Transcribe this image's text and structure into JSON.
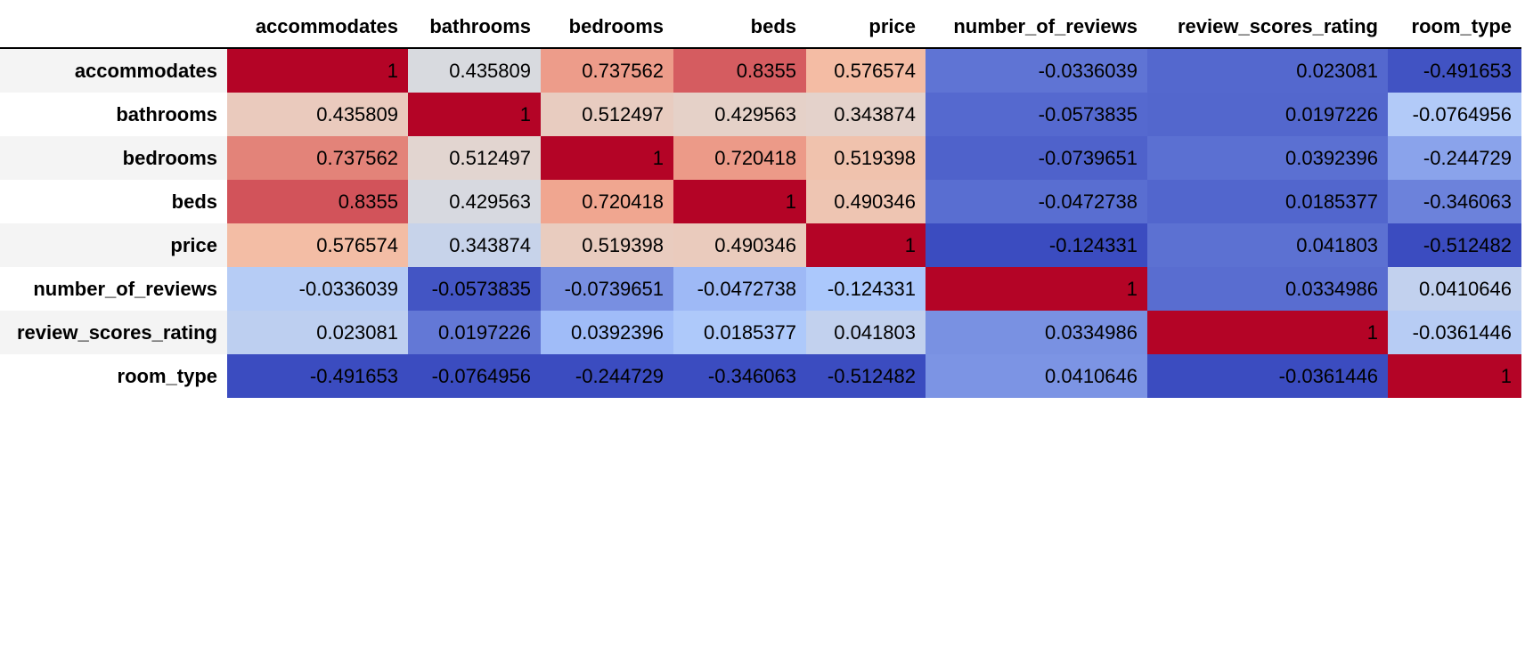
{
  "chart_data": {
    "type": "table",
    "columns": [
      "accommodates",
      "bathrooms",
      "bedrooms",
      "beds",
      "price",
      "number_of_reviews",
      "review_scores_rating",
      "room_type"
    ],
    "rows": [
      {
        "label": "accommodates",
        "cells": [
          "1",
          "0.435809",
          "0.737562",
          "0.8355",
          "0.576574",
          "-0.0336039",
          "0.023081",
          "-0.491653"
        ]
      },
      {
        "label": "bathrooms",
        "cells": [
          "0.435809",
          "1",
          "0.512497",
          "0.429563",
          "0.343874",
          "-0.0573835",
          "0.0197226",
          "-0.0764956"
        ]
      },
      {
        "label": "bedrooms",
        "cells": [
          "0.737562",
          "0.512497",
          "1",
          "0.720418",
          "0.519398",
          "-0.0739651",
          "0.0392396",
          "-0.244729"
        ]
      },
      {
        "label": "beds",
        "cells": [
          "0.8355",
          "0.429563",
          "0.720418",
          "1",
          "0.490346",
          "-0.0472738",
          "0.0185377",
          "-0.346063"
        ]
      },
      {
        "label": "price",
        "cells": [
          "0.576574",
          "0.343874",
          "0.519398",
          "0.490346",
          "1",
          "-0.124331",
          "0.041803",
          "-0.512482"
        ]
      },
      {
        "label": "number_of_reviews",
        "cells": [
          "-0.0336039",
          "-0.0573835",
          "-0.0739651",
          "-0.0472738",
          "-0.124331",
          "1",
          "0.0334986",
          "0.0410646"
        ]
      },
      {
        "label": "review_scores_rating",
        "cells": [
          "0.023081",
          "0.0197226",
          "0.0392396",
          "0.0185377",
          "0.041803",
          "0.0334986",
          "1",
          "-0.0361446"
        ]
      },
      {
        "label": "room_type",
        "cells": [
          "-0.491653",
          "-0.0764956",
          "-0.244729",
          "-0.346063",
          "-0.512482",
          "0.0410646",
          "-0.0361446",
          "1"
        ]
      }
    ],
    "colormap": "coolwarm",
    "colormap_stops": [
      "#3b4cc0",
      "#aac7fd",
      "#dddcdc",
      "#f7b89c",
      "#b40426"
    ],
    "background_gradient_axis": "columns",
    "text_color": "#000000"
  }
}
